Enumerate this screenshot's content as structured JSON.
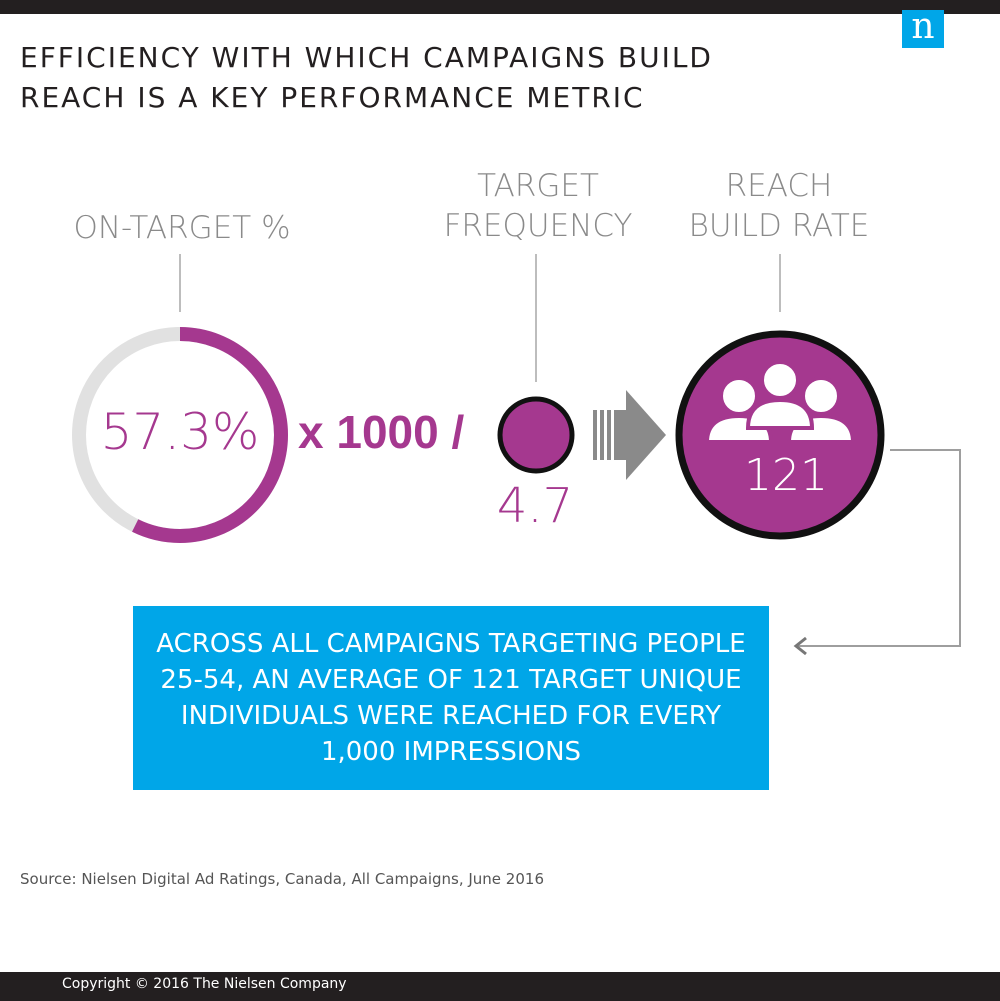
{
  "header": {
    "title_line1": "EFFICIENCY WITH WHICH CAMPAIGNS BUILD",
    "title_line2": "REACH IS A KEY PERFORMANCE METRIC",
    "logo_letter": "n"
  },
  "metrics": {
    "on_target": {
      "label": "ON-TARGET %",
      "value": "57.3%",
      "fraction": 0.573
    },
    "formula_text": "x 1000 /",
    "target_frequency": {
      "label_line1": "TARGET",
      "label_line2": "FREQUENCY",
      "value": "4.7"
    },
    "reach_build_rate": {
      "label_line1": "REACH",
      "label_line2": "BUILD RATE",
      "value": "121",
      "icon": "people-group-icon"
    }
  },
  "callout": {
    "text": "ACROSS ALL CAMPAIGNS TARGETING PEOPLE 25-54, AN AVERAGE OF 121 TARGET UNIQUE INDIVIDUALS WERE REACHED FOR EVERY 1,000 IMPRESSIONS"
  },
  "footer": {
    "source": "Source: Nielsen Digital Ad Ratings, Canada, All Campaigns, June 2016",
    "copyright": "Copyright © 2016 The Nielsen Company"
  },
  "colors": {
    "accent_purple": "#a5388f",
    "callout_blue": "#00a6e8",
    "ring_gray": "#e1e1e1",
    "dark": "#231f20",
    "label_gray": "#8a8a8a"
  }
}
